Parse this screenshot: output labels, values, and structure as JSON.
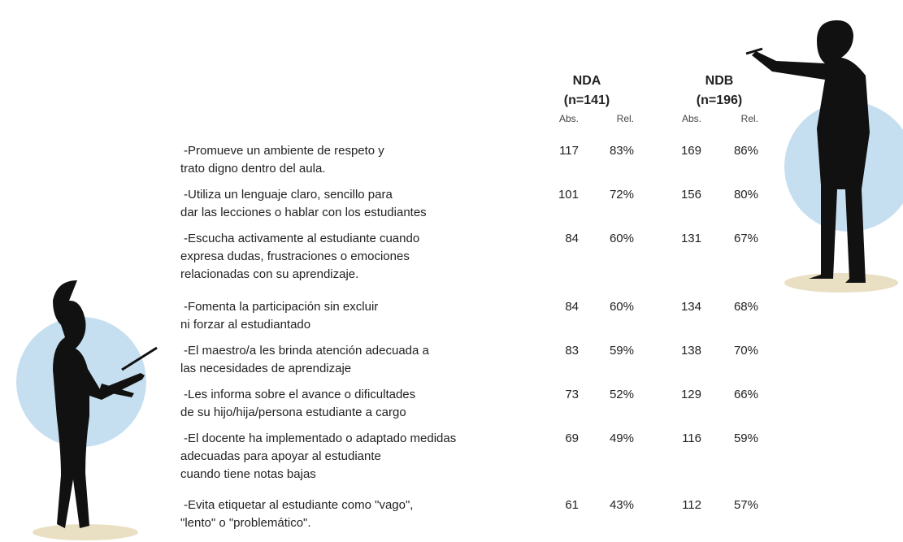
{
  "header": {
    "groups": [
      {
        "name": "NDA",
        "n": "(n=141)",
        "cols": [
          "Abs.",
          "Rel."
        ]
      },
      {
        "name": "NDB",
        "n": "(n=196)",
        "cols": [
          "Abs.",
          "Rel."
        ]
      }
    ]
  },
  "table": {
    "rows": [
      {
        "label": [
          "-Promueve un ambiente de respeto y",
          "trato digno dentro del aula."
        ],
        "nda_abs": 117,
        "nda_rel": "83%",
        "ndb_abs": 169,
        "ndb_rel": "86%"
      },
      {
        "label": [
          "-Utiliza un lenguaje claro, sencillo para",
          "dar las lecciones o hablar con los estudiantes"
        ],
        "nda_abs": 101,
        "nda_rel": "72%",
        "ndb_abs": 156,
        "ndb_rel": "80%"
      },
      {
        "label": [
          "-Escucha activamente al estudiante cuando",
          "expresa dudas, frustraciones o emociones",
          "relacionadas con su aprendizaje."
        ],
        "nda_abs": 84,
        "nda_rel": "60%",
        "ndb_abs": 131,
        "ndb_rel": "67%"
      },
      {
        "label": [
          "-Fomenta la participación sin excluir",
          "ni forzar al estudiantado"
        ],
        "nda_abs": 84,
        "nda_rel": "60%",
        "ndb_abs": 134,
        "ndb_rel": "68%"
      },
      {
        "label": [
          "-El maestro/a les brinda atención adecuada a",
          "las necesidades de aprendizaje"
        ],
        "nda_abs": 83,
        "nda_rel": "59%",
        "ndb_abs": 138,
        "ndb_rel": "70%"
      },
      {
        "label": [
          "-Les informa sobre el avance o dificultades",
          "de su hijo/hija/persona estudiante a cargo"
        ],
        "nda_abs": 73,
        "nda_rel": "52%",
        "ndb_abs": 129,
        "ndb_rel": "66%"
      },
      {
        "label": [
          "-El docente ha implementado o adaptado medidas",
          "adecuadas para apoyar al estudiante",
          "cuando tiene notas bajas"
        ],
        "nda_abs": 69,
        "nda_rel": "49%",
        "ndb_abs": 116,
        "ndb_rel": "59%"
      },
      {
        "label": [
          "-Evita etiquetar al estudiante como \"vago\",",
          "\"lento\" o \"problemático\"."
        ],
        "nda_abs": 61,
        "nda_rel": "43%",
        "ndb_abs": 112,
        "ndb_rel": "57%"
      }
    ]
  }
}
